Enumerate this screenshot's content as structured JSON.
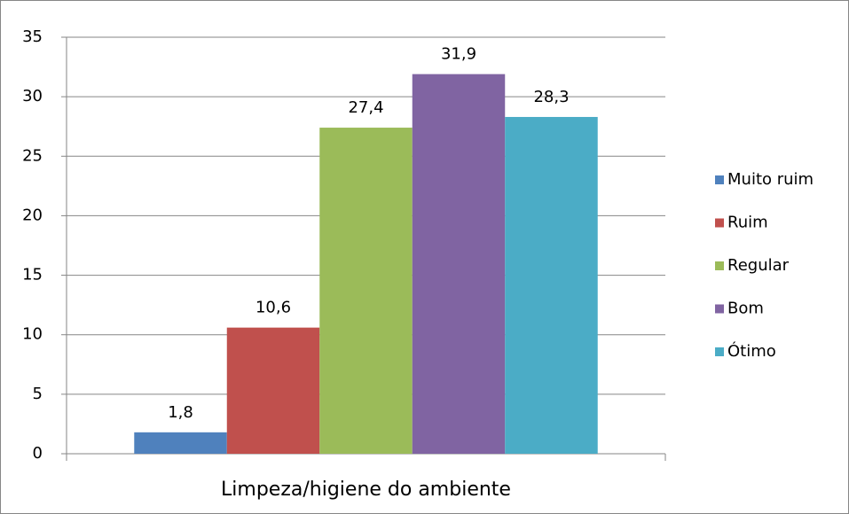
{
  "chart_data": {
    "type": "bar",
    "categories": [
      "Limpeza/higiene do ambiente"
    ],
    "series": [
      {
        "name": "Muito ruim",
        "color": "#4f81bd",
        "values": [
          1.8
        ],
        "value_labels": [
          "1,8"
        ]
      },
      {
        "name": "Ruim",
        "color": "#c0504d",
        "values": [
          10.6
        ],
        "value_labels": [
          "10,6"
        ]
      },
      {
        "name": "Regular",
        "color": "#9bbb59",
        "values": [
          27.4
        ],
        "value_labels": [
          "27,4"
        ]
      },
      {
        "name": "Bom",
        "color": "#8064a2",
        "values": [
          31.9
        ],
        "value_labels": [
          "31,9"
        ]
      },
      {
        "name": "Ótimo",
        "color": "#4bacc6",
        "values": [
          28.3
        ],
        "value_labels": [
          "28,3"
        ]
      }
    ],
    "ylim": [
      0,
      35
    ],
    "yticks": [
      0,
      5,
      10,
      15,
      20,
      25,
      30,
      35
    ],
    "grid": true,
    "legend": "right"
  }
}
